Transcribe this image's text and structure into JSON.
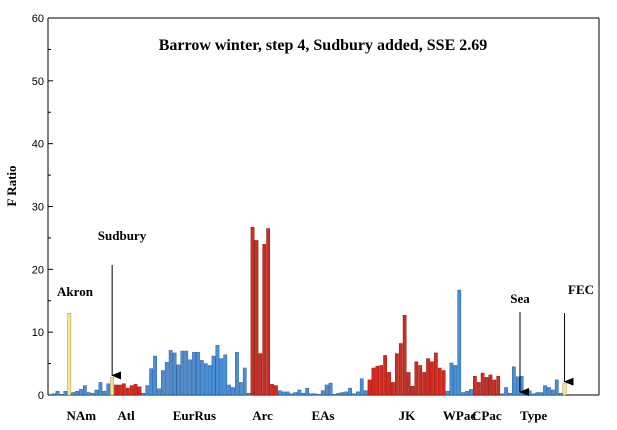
{
  "chart_data": {
    "type": "bar",
    "title": "Barrow winter, step 4, Sudbury added, SSE 2.69",
    "ylabel": "F Ratio",
    "xlabel": "",
    "ylim": [
      0,
      60
    ],
    "yticks": [
      0,
      10,
      20,
      30,
      40,
      50,
      60
    ],
    "grid": false,
    "legend": "none",
    "colors": {
      "blue": "#4a8fd6",
      "red": "#d42a1f",
      "yellow": "#f2e890"
    },
    "groups": [
      {
        "label": "NAm",
        "values": [
          0.2,
          0.6,
          0.1,
          0.6,
          13.0,
          0.4,
          0.6,
          0.9,
          1.5,
          0.4,
          0.3,
          0.8,
          2.0,
          0.6,
          1.8
        ],
        "colors": [
          "blue",
          "blue",
          "blue",
          "blue",
          "yellow",
          "blue",
          "blue",
          "blue",
          "blue",
          "blue",
          "blue",
          "blue",
          "blue",
          "blue",
          "blue"
        ]
      },
      {
        "label": "Atl",
        "values": [
          2.8,
          1.6,
          1.6,
          1.8,
          1.1,
          1.5,
          1.7,
          1.3
        ],
        "colors": [
          "yellow",
          "red",
          "red",
          "red",
          "red",
          "red",
          "red",
          "red"
        ]
      },
      {
        "label": "EurRus",
        "values": [
          0.3,
          1.5,
          4.2,
          6.2,
          1.0,
          3.9,
          5.2,
          7.1,
          6.7,
          4.8,
          7.0,
          7.0,
          5.6,
          6.8,
          6.8,
          5.5,
          5.0,
          4.7,
          6.2,
          7.9,
          5.8,
          6.4,
          1.6,
          1.2,
          6.8,
          2.0,
          4.3
        ],
        "colors": [
          "blue",
          "blue",
          "blue",
          "blue",
          "blue",
          "blue",
          "blue",
          "blue",
          "blue",
          "blue",
          "blue",
          "blue",
          "blue",
          "blue",
          "blue",
          "blue",
          "blue",
          "blue",
          "blue",
          "blue",
          "blue",
          "blue",
          "blue",
          "blue",
          "blue",
          "blue",
          "blue"
        ]
      },
      {
        "label": "Arc",
        "values": [
          0.3,
          26.7,
          24.6,
          6.6,
          24.0,
          26.5,
          1.7,
          1.5
        ],
        "colors": [
          "blue",
          "red",
          "red",
          "red",
          "red",
          "red",
          "red",
          "red"
        ]
      },
      {
        "label": "EAs",
        "values": [
          0.7,
          0.5,
          0.5,
          0.2,
          0.4,
          0.8,
          0.3,
          1.1,
          0.2,
          0.2,
          0.1,
          0.7,
          1.6,
          1.9,
          0.1,
          0.3,
          0.4,
          0.5,
          1.1,
          0.2,
          0.5,
          2.6,
          0.7
        ],
        "colors": [
          "blue",
          "blue",
          "blue",
          "blue",
          "blue",
          "blue",
          "blue",
          "blue",
          "blue",
          "blue",
          "blue",
          "blue",
          "blue",
          "blue",
          "blue",
          "blue",
          "blue",
          "blue",
          "blue",
          "blue",
          "blue",
          "blue",
          "blue"
        ]
      },
      {
        "label": "JK",
        "values": [
          2.4,
          4.3,
          4.6,
          4.7,
          6.3,
          3.6,
          2.0,
          6.6,
          8.2,
          12.7,
          3.6,
          1.4,
          5.3,
          4.7,
          3.6,
          5.8,
          5.3,
          6.7,
          4.3,
          3.9
        ],
        "colors": [
          "red",
          "red",
          "red",
          "red",
          "red",
          "red",
          "red",
          "red",
          "red",
          "red",
          "red",
          "red",
          "red",
          "red",
          "red",
          "red",
          "red",
          "red",
          "red",
          "red"
        ]
      },
      {
        "label": "WPac",
        "values": [
          0.6,
          5.1,
          4.7,
          16.7,
          0.4,
          0.6,
          0.9
        ],
        "colors": [
          "blue",
          "blue",
          "blue",
          "blue",
          "blue",
          "blue",
          "blue"
        ]
      },
      {
        "label": "CPac",
        "values": [
          3.0,
          2.0,
          3.5,
          2.8,
          3.2,
          2.4,
          3.0
        ],
        "colors": [
          "red",
          "red",
          "red",
          "red",
          "red",
          "red",
          "red"
        ]
      },
      {
        "label": "Type",
        "values": [
          0.2,
          1.2,
          0.3,
          4.5,
          2.9,
          3.0,
          0.7,
          0.7,
          0.2,
          0.4,
          0.4,
          1.5,
          1.2,
          0.8,
          2.4,
          0.3,
          1.8
        ],
        "colors": [
          "blue",
          "blue",
          "blue",
          "blue",
          "blue",
          "blue",
          "blue",
          "blue",
          "blue",
          "blue",
          "blue",
          "blue",
          "blue",
          "blue",
          "blue",
          "blue",
          "yellow"
        ]
      }
    ],
    "annotations": [
      {
        "label": "Akron",
        "points_to": "NAm"
      },
      {
        "label": "Sudbury",
        "points_to": "Atl"
      },
      {
        "label": "Sea",
        "points_to": "CPac"
      },
      {
        "label": "FEC",
        "points_to": "Type"
      }
    ]
  }
}
